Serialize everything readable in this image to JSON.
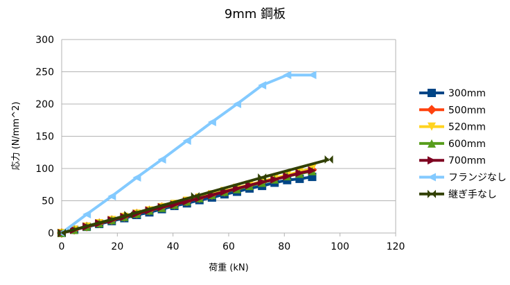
{
  "chart_data": {
    "type": "line",
    "title": "9mm 鋼板",
    "xlabel": "荷重 (kN)",
    "ylabel": "応力 (N/mm^2)",
    "xlim": [
      0,
      120
    ],
    "ylim": [
      0,
      300
    ],
    "x_ticks": [
      "0",
      "20",
      "40",
      "60",
      "80",
      "100",
      "120"
    ],
    "y_ticks": [
      "0",
      "50",
      "100",
      "150",
      "200",
      "250",
      "300"
    ],
    "grid": "horizontal",
    "legend_position": "right",
    "series": [
      {
        "name": "300mm",
        "color": "#004586",
        "marker": "square",
        "points": [
          [
            0,
            0
          ],
          [
            4.5,
            5
          ],
          [
            9,
            9.5
          ],
          [
            13.5,
            14
          ],
          [
            18,
            18.5
          ],
          [
            22.5,
            23
          ],
          [
            27,
            28
          ],
          [
            31.5,
            32
          ],
          [
            36,
            37
          ],
          [
            40.5,
            42
          ],
          [
            45,
            46
          ],
          [
            49.5,
            51
          ],
          [
            54,
            55
          ],
          [
            58.5,
            60
          ],
          [
            63,
            64
          ],
          [
            67.5,
            69
          ],
          [
            72,
            73
          ],
          [
            76.5,
            78
          ],
          [
            81,
            82
          ],
          [
            85.5,
            84
          ],
          [
            90,
            87
          ]
        ]
      },
      {
        "name": "500mm",
        "color": "#ff420e",
        "marker": "diamond",
        "points": [
          [
            0,
            0
          ],
          [
            4.5,
            5
          ],
          [
            9,
            10
          ],
          [
            13.5,
            15
          ],
          [
            18,
            20
          ],
          [
            22.5,
            25
          ],
          [
            27,
            30
          ],
          [
            31.5,
            35
          ],
          [
            36,
            40
          ],
          [
            40.5,
            44
          ],
          [
            45,
            49
          ],
          [
            49.5,
            54
          ],
          [
            54,
            59
          ],
          [
            58.5,
            64
          ],
          [
            63,
            69
          ],
          [
            67.5,
            74
          ],
          [
            72,
            79
          ],
          [
            76.5,
            84
          ],
          [
            81,
            89
          ],
          [
            85.5,
            93
          ],
          [
            90,
            98
          ]
        ]
      },
      {
        "name": "520mm",
        "color": "#ffd320",
        "marker": "triangle-down",
        "points": [
          [
            0,
            0
          ],
          [
            4.5,
            5
          ],
          [
            9,
            10
          ],
          [
            13.5,
            15
          ],
          [
            18,
            20
          ],
          [
            22.5,
            25
          ],
          [
            27,
            30
          ],
          [
            31.5,
            35
          ],
          [
            36,
            40
          ],
          [
            40.5,
            45
          ],
          [
            45,
            50
          ],
          [
            49.5,
            55
          ],
          [
            54,
            60
          ],
          [
            58.5,
            65
          ],
          [
            63,
            70
          ],
          [
            67.5,
            75
          ],
          [
            72,
            80
          ],
          [
            76.5,
            85
          ],
          [
            81,
            90
          ],
          [
            85.5,
            95
          ],
          [
            90,
            100
          ]
        ]
      },
      {
        "name": "600mm",
        "color": "#579d1c",
        "marker": "triangle-up",
        "points": [
          [
            0,
            0
          ],
          [
            4.5,
            5
          ],
          [
            9,
            10
          ],
          [
            13.5,
            15
          ],
          [
            18,
            20
          ],
          [
            22.5,
            25
          ],
          [
            27,
            30
          ],
          [
            31.5,
            35
          ],
          [
            36,
            39
          ],
          [
            40.5,
            44
          ],
          [
            45,
            49
          ],
          [
            49.5,
            54
          ],
          [
            54,
            59
          ],
          [
            58.5,
            64
          ],
          [
            63,
            68
          ],
          [
            67.5,
            73
          ],
          [
            72,
            78
          ],
          [
            76.5,
            83
          ],
          [
            81,
            88
          ],
          [
            85.5,
            92
          ],
          [
            90,
            96
          ]
        ]
      },
      {
        "name": "700mm",
        "color": "#7e0021",
        "marker": "triangle-right",
        "points": [
          [
            0,
            0
          ],
          [
            4.5,
            5
          ],
          [
            9,
            10
          ],
          [
            13.5,
            15
          ],
          [
            18,
            20
          ],
          [
            22.5,
            25
          ],
          [
            27,
            30
          ],
          [
            31.5,
            35
          ],
          [
            36,
            40
          ],
          [
            40.5,
            44
          ],
          [
            45,
            49
          ],
          [
            49.5,
            54
          ],
          [
            54,
            59
          ],
          [
            58.5,
            64
          ],
          [
            63,
            69
          ],
          [
            67.5,
            74
          ],
          [
            72,
            79
          ],
          [
            76.5,
            83
          ],
          [
            81,
            88
          ],
          [
            85.5,
            93
          ],
          [
            90,
            97
          ]
        ]
      },
      {
        "name": "フランジなし",
        "color": "#83caff",
        "marker": "triangle-left",
        "points": [
          [
            0,
            0
          ],
          [
            9,
            29
          ],
          [
            18,
            57
          ],
          [
            27,
            86
          ],
          [
            36,
            114
          ],
          [
            45,
            143
          ],
          [
            54,
            172
          ],
          [
            63,
            200
          ],
          [
            72,
            229
          ],
          [
            81,
            245
          ],
          [
            90,
            245
          ]
        ]
      },
      {
        "name": "継ぎ手なし",
        "color": "#314004",
        "marker": "bowtie",
        "points": [
          [
            0,
            0
          ],
          [
            24,
            28
          ],
          [
            48,
            57
          ],
          [
            72,
            86
          ],
          [
            96,
            114
          ]
        ]
      }
    ]
  }
}
